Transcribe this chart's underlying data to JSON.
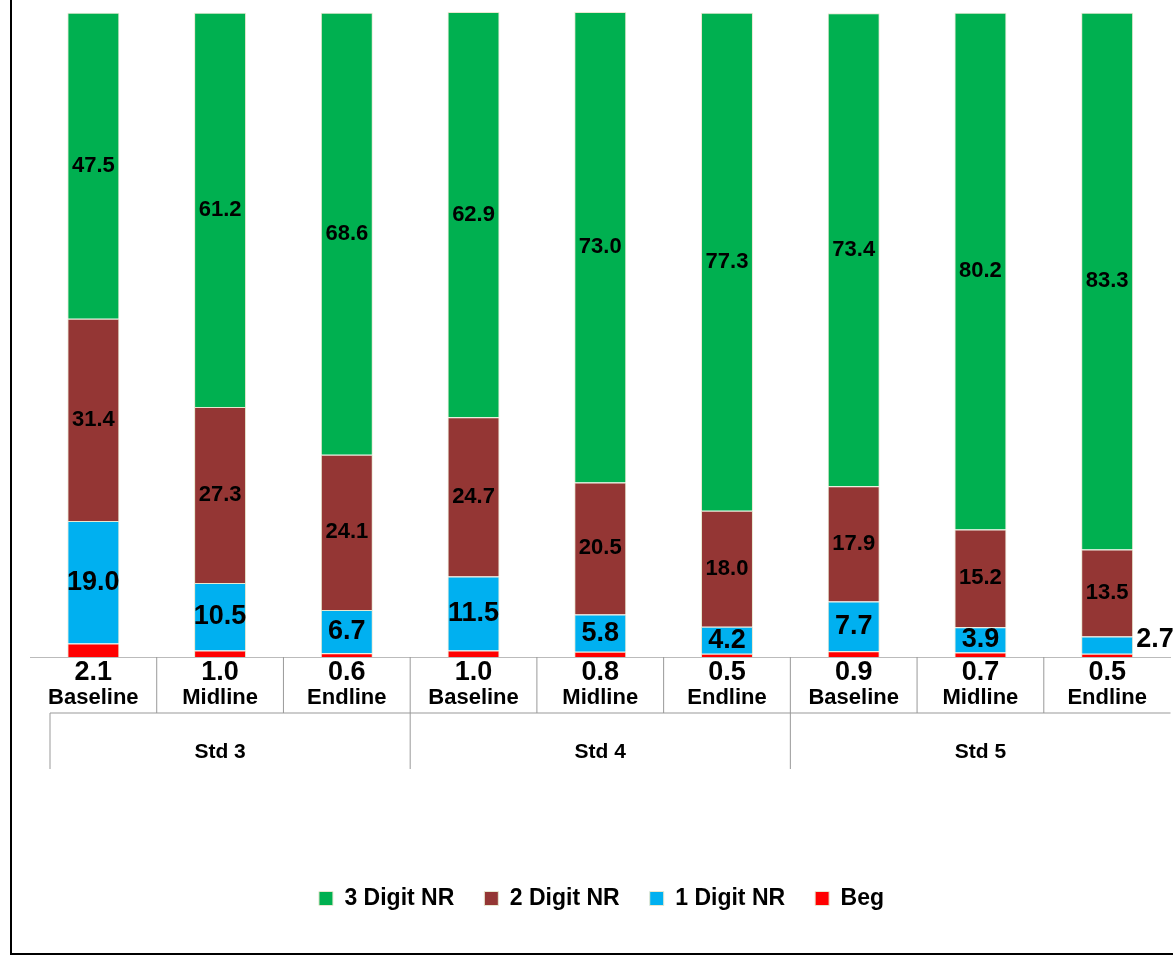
{
  "chart_data": {
    "type": "bar",
    "stacked": true,
    "legend": "bottom",
    "grid": false,
    "tick_labels": "x",
    "categories": [
      "Baseline",
      "Midline",
      "Endline",
      "Baseline",
      "Midline",
      "Endline",
      "Baseline",
      "Midline",
      "Endline"
    ],
    "annotations": [
      "Std 3",
      "Std 4",
      "Std 5"
    ],
    "series": [
      {
        "name": "Beg",
        "color": "#ff0000",
        "values": [
          2.1,
          1.0,
          0.6,
          1.0,
          0.8,
          0.5,
          0.9,
          0.7,
          0.5
        ],
        "value_labels": [
          "2.1",
          "1.0",
          "0.6",
          "1.0",
          "0.8",
          "0.5",
          "0.9",
          "0.7",
          "0.5"
        ]
      },
      {
        "name": "1 Digit NR",
        "color": "#00b0f0",
        "values": [
          19.0,
          10.5,
          6.7,
          11.5,
          5.8,
          4.2,
          7.7,
          3.9,
          2.7
        ],
        "value_labels": [
          "19.0",
          "10.5",
          "6.7",
          "11.5",
          "5.8",
          "4.2",
          "7.7",
          "3.9",
          "2.7"
        ]
      },
      {
        "name": "2 Digit NR",
        "color": "#943634",
        "values": [
          31.4,
          27.3,
          24.1,
          24.7,
          20.5,
          18.0,
          17.9,
          15.2,
          13.5
        ],
        "value_labels": [
          "31.4",
          "27.3",
          "24.1",
          "24.7",
          "20.5",
          "18.0",
          "17.9",
          "15.2",
          "13.5"
        ]
      },
      {
        "name": "3 Digit NR",
        "color": "#00b050",
        "values": [
          47.5,
          61.2,
          68.6,
          62.9,
          73.0,
          77.3,
          73.4,
          80.2,
          83.3
        ],
        "value_labels": [
          "47.5",
          "61.2",
          "68.6",
          "62.9",
          "73.0",
          "77.3",
          "73.4",
          "80.2",
          "83.3"
        ]
      }
    ]
  }
}
